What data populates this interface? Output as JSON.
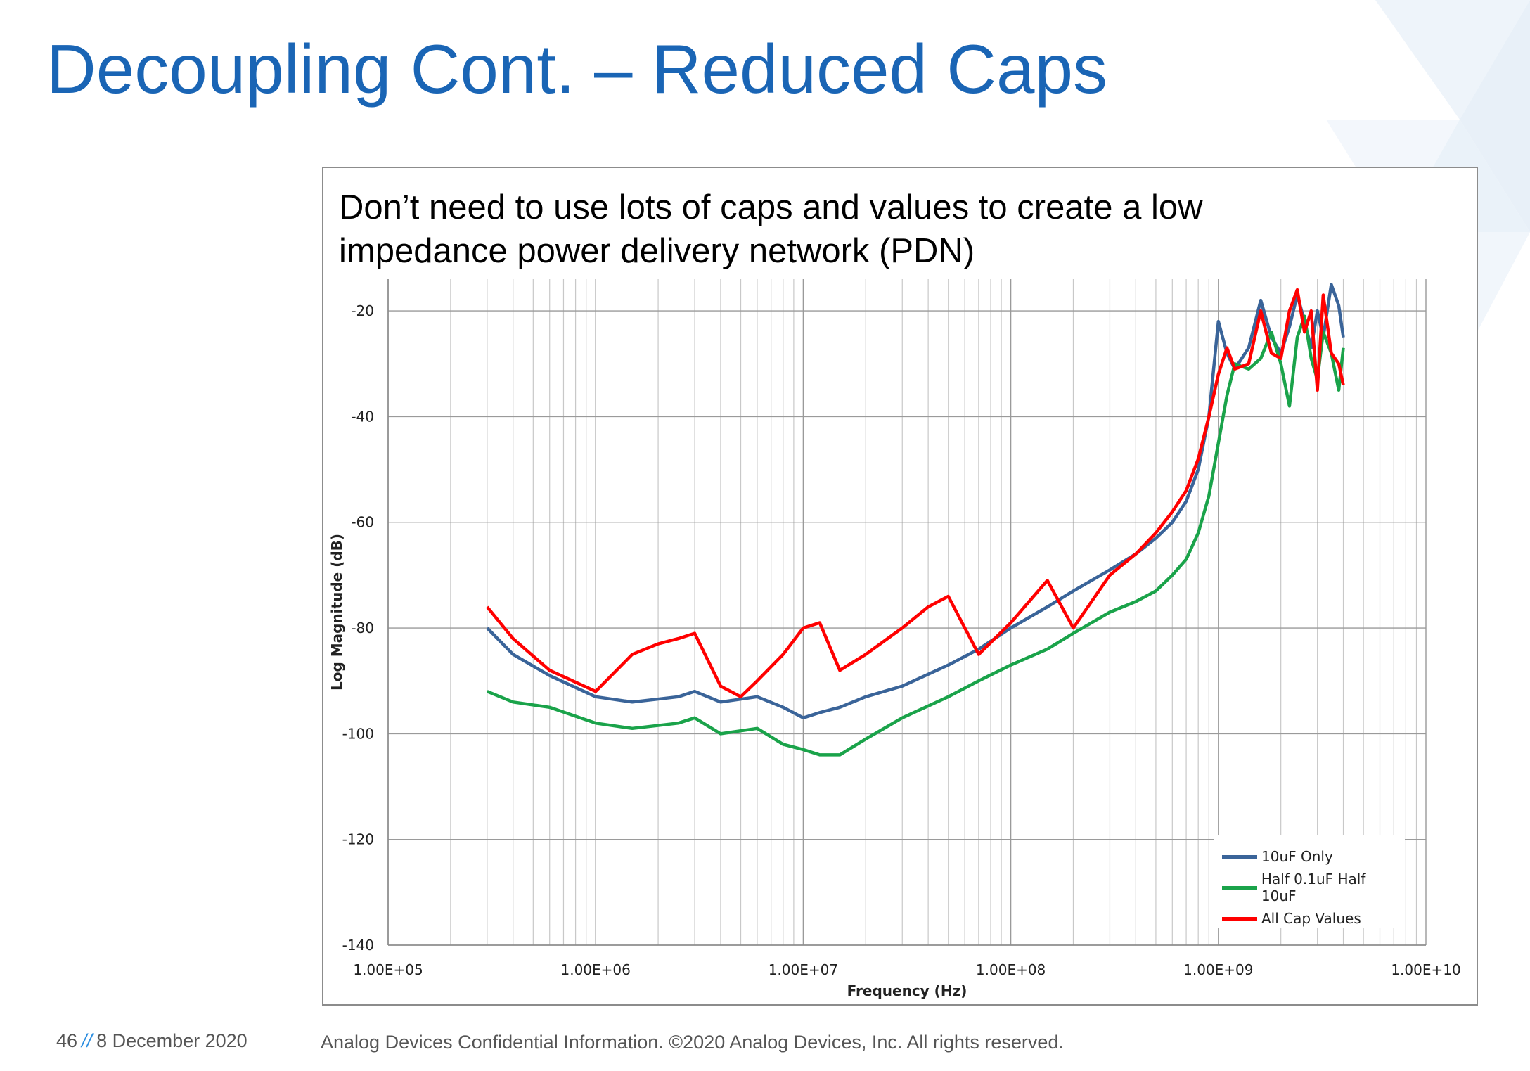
{
  "slide": {
    "title": "Decoupling Cont. – Reduced Caps",
    "note": "Don’t need to use lots of caps and values to create a low impedance power delivery network (PDN)",
    "footer": {
      "page_number": "46",
      "separator": "//",
      "date": "8 December 2020",
      "confidential": "Analog Devices Confidential Information. ©2020 Analog Devices, Inc. All rights reserved."
    },
    "brand_color": "#1a65b5"
  },
  "chart_data": {
    "type": "line",
    "xlabel": "Frequency (Hz)",
    "ylabel": "Log Magnitude (dB)",
    "xscale": "log",
    "xlim": [
      100000,
      10000000000
    ],
    "ylim": [
      -140,
      -14
    ],
    "x_ticks": [
      100000,
      1000000,
      10000000,
      100000000,
      1000000000,
      10000000000
    ],
    "x_tick_labels": [
      "1.00E+05",
      "1.00E+06",
      "1.00E+07",
      "1.00E+08",
      "1.00E+09",
      "1.00E+10"
    ],
    "y_ticks": [
      -20,
      -40,
      -60,
      -80,
      -100,
      -120,
      -140
    ],
    "grid": true,
    "legend_position": "bottom-right",
    "series": [
      {
        "name": "10uF Only",
        "color": "#3a6499",
        "x": [
          300000,
          400000,
          600000,
          1000000,
          1500000,
          2500000,
          3000000,
          4000000,
          6000000,
          8000000,
          10000000,
          12000000,
          15000000,
          20000000,
          30000000,
          50000000,
          70000000,
          100000000,
          150000000,
          200000000,
          300000000,
          400000000,
          500000000,
          600000000,
          700000000,
          800000000,
          900000000,
          1000000000,
          1100000000,
          1200000000,
          1400000000,
          1600000000,
          1800000000,
          2000000000,
          2200000000,
          2400000000,
          2600000000,
          2800000000,
          3000000000,
          3200000000,
          3500000000,
          3800000000,
          4000000000
        ],
        "y": [
          -80,
          -85,
          -89,
          -93,
          -94,
          -93,
          -92,
          -94,
          -93,
          -95,
          -97,
          -96,
          -95,
          -93,
          -91,
          -87,
          -84,
          -80,
          -76,
          -73,
          -69,
          -66,
          -63,
          -60,
          -56,
          -50,
          -40,
          -22,
          -28,
          -31,
          -27,
          -18,
          -25,
          -28,
          -23,
          -17,
          -22,
          -27,
          -20,
          -25,
          -15,
          -19,
          -25
        ]
      },
      {
        "name": "Half 0.1uF Half 10uF",
        "color": "#1aa34a",
        "x": [
          300000,
          400000,
          600000,
          1000000,
          1500000,
          2500000,
          3000000,
          4000000,
          6000000,
          8000000,
          10000000,
          12000000,
          15000000,
          20000000,
          30000000,
          50000000,
          70000000,
          100000000,
          150000000,
          200000000,
          300000000,
          400000000,
          500000000,
          600000000,
          700000000,
          800000000,
          900000000,
          1000000000,
          1100000000,
          1200000000,
          1400000000,
          1600000000,
          1800000000,
          2000000000,
          2200000000,
          2400000000,
          2600000000,
          2800000000,
          3000000000,
          3200000000,
          3500000000,
          3800000000,
          4000000000
        ],
        "y": [
          -92,
          -94,
          -95,
          -98,
          -99,
          -98,
          -97,
          -100,
          -99,
          -102,
          -103,
          -104,
          -104,
          -101,
          -97,
          -93,
          -90,
          -87,
          -84,
          -81,
          -77,
          -75,
          -73,
          -70,
          -67,
          -62,
          -55,
          -45,
          -36,
          -30,
          -31,
          -29,
          -24,
          -30,
          -38,
          -25,
          -21,
          -29,
          -33,
          -24,
          -28,
          -35,
          -27
        ]
      },
      {
        "name": "All Cap Values",
        "color": "#ff0000",
        "x": [
          300000,
          400000,
          600000,
          1000000,
          1500000,
          2000000,
          2500000,
          3000000,
          4000000,
          5000000,
          6000000,
          8000000,
          10000000,
          12000000,
          15000000,
          20000000,
          30000000,
          40000000,
          50000000,
          70000000,
          100000000,
          150000000,
          200000000,
          300000000,
          400000000,
          500000000,
          600000000,
          700000000,
          800000000,
          900000000,
          1000000000,
          1100000000,
          1200000000,
          1400000000,
          1600000000,
          1800000000,
          2000000000,
          2200000000,
          2400000000,
          2600000000,
          2800000000,
          3000000000,
          3200000000,
          3500000000,
          3800000000,
          4000000000
        ],
        "y": [
          -76,
          -82,
          -88,
          -92,
          -85,
          -83,
          -82,
          -81,
          -91,
          -93,
          -90,
          -85,
          -80,
          -79,
          -88,
          -85,
          -80,
          -76,
          -74,
          -85,
          -79,
          -71,
          -80,
          -70,
          -66,
          -62,
          -58,
          -54,
          -48,
          -40,
          -32,
          -27,
          -31,
          -30,
          -20,
          -28,
          -29,
          -20,
          -16,
          -24,
          -20,
          -35,
          -17,
          -28,
          -30,
          -34
        ]
      }
    ]
  }
}
